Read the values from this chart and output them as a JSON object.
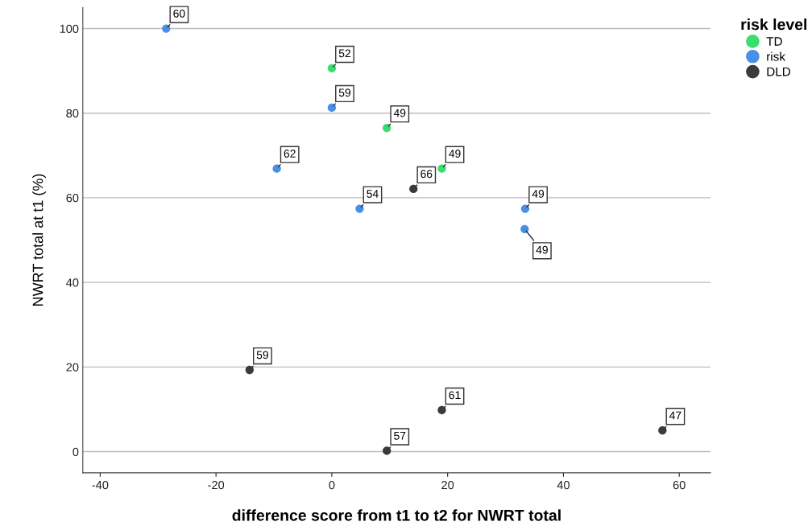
{
  "chart_data": {
    "type": "scatter",
    "xlabel": "difference score from t1 to t2 for NWRT total",
    "ylabel": "NWRT total at t1 (%)",
    "legend_title": "risk level",
    "legend": "top right",
    "grid": "y",
    "marker": "circle",
    "xlim": [
      -43,
      65.4
    ],
    "ylim": [
      -5,
      105
    ],
    "xticks": [
      -40,
      -20,
      0,
      20,
      40,
      60
    ],
    "yticks": [
      0,
      20,
      40,
      60,
      80,
      100
    ],
    "series": [
      {
        "name": "TD",
        "color": "#3ddc6f",
        "x": [
          0,
          9.5,
          19.0
        ],
        "values": [
          90.6,
          76.5,
          66.9
        ]
      },
      {
        "name": "risk",
        "color": "#4a8fe6",
        "x": [
          -28.6,
          0,
          -9.5,
          4.8,
          33.4,
          33.3
        ],
        "values": [
          100,
          81.3,
          66.9,
          57.4,
          57.4,
          52.6
        ]
      },
      {
        "name": "DLD",
        "color": "#3b3b3b",
        "x": [
          14.1,
          -14.2,
          19.0,
          9.5,
          57.1
        ],
        "values": [
          62.1,
          19.3,
          9.8,
          0.2,
          5.0
        ]
      }
    ],
    "annotations": [
      {
        "text": "60",
        "x": -28.6,
        "y": 100
      },
      {
        "text": "52",
        "x": 0,
        "y": 90.6
      },
      {
        "text": "59",
        "x": 0,
        "y": 81.3
      },
      {
        "text": "49",
        "x": 9.5,
        "y": 76.5
      },
      {
        "text": "62",
        "x": -9.5,
        "y": 66.9
      },
      {
        "text": "49",
        "x": 19.0,
        "y": 66.9
      },
      {
        "text": "66",
        "x": 14.1,
        "y": 62.1
      },
      {
        "text": "54",
        "x": 4.8,
        "y": 57.4
      },
      {
        "text": "49",
        "x": 33.4,
        "y": 57.4
      },
      {
        "text": "49",
        "x": 33.3,
        "y": 52.6
      },
      {
        "text": "59",
        "x": -14.2,
        "y": 19.3
      },
      {
        "text": "61",
        "x": 19.0,
        "y": 9.8
      },
      {
        "text": "57",
        "x": 9.5,
        "y": 0.2
      },
      {
        "text": "47",
        "x": 57.1,
        "y": 5.0
      }
    ]
  }
}
